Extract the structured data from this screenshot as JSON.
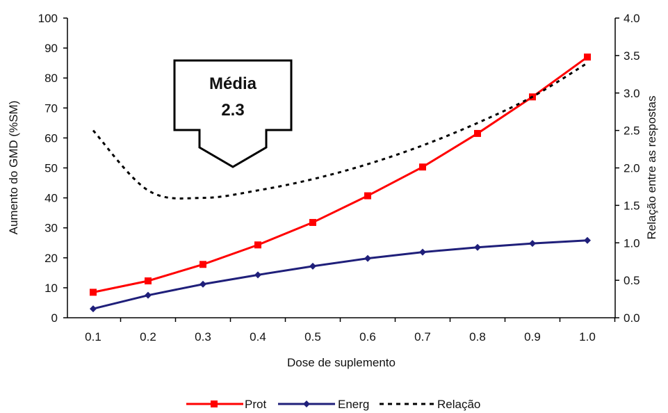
{
  "chart_data": {
    "type": "line",
    "x": [
      0.1,
      0.2,
      0.3,
      0.4,
      0.5,
      0.6,
      0.7,
      0.8,
      0.9,
      1.0
    ],
    "x_tick_labels": [
      "0.1",
      "0.2",
      "0.3",
      "0.4",
      "0.5",
      "0.6",
      "0.7",
      "0.8",
      "0.9",
      "1.0"
    ],
    "xlabel": "Dose de suplemento",
    "ylabel": "Aumento do GMD (%SM)",
    "ylim": [
      0,
      100
    ],
    "y_ticks": [
      "0",
      "10",
      "20",
      "30",
      "40",
      "50",
      "60",
      "70",
      "80",
      "90",
      "100"
    ],
    "y2label": "Relação entre as respostas",
    "y2lim": [
      0,
      4
    ],
    "y2_ticks": [
      "0.0",
      "0.5",
      "1.0",
      "1.5",
      "2.0",
      "2.5",
      "3.0",
      "3.5",
      "4.0"
    ],
    "series": [
      {
        "name": "Prot",
        "axis": "left",
        "color": "#ff0000",
        "marker": "square",
        "values": [
          8.5,
          12.3,
          17.8,
          24.3,
          31.8,
          40.7,
          50.3,
          61.5,
          73.7,
          87.0
        ]
      },
      {
        "name": "Energ",
        "axis": "left",
        "color": "#1f1f7a",
        "marker": "diamond",
        "values": [
          3.0,
          7.5,
          11.2,
          14.3,
          17.2,
          19.8,
          21.9,
          23.5,
          24.8,
          25.8
        ]
      },
      {
        "name": "Relação",
        "axis": "right",
        "color": "#000000",
        "style": "dotted",
        "values": [
          2.5,
          1.7,
          1.6,
          1.7,
          1.85,
          2.05,
          2.3,
          2.6,
          2.95,
          3.4
        ]
      }
    ],
    "legend_position": "bottom",
    "annotation": {
      "line1": "Média",
      "line2": "2.3"
    }
  }
}
